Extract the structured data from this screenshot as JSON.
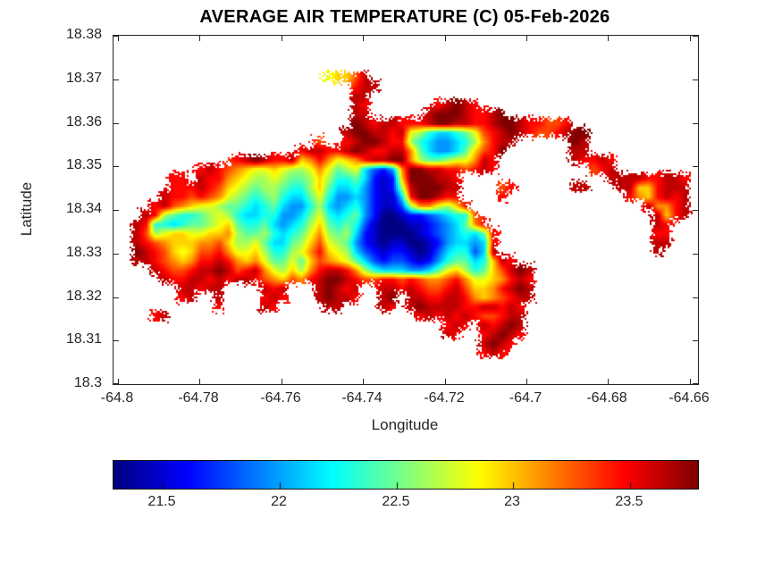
{
  "chart_data": {
    "type": "heatmap",
    "title": "AVERAGE AIR TEMPERATURE (C) 05-Feb-2026",
    "xlabel": "Longitude",
    "ylabel": "Latitude",
    "xlim": [
      -64.8011,
      -64.658
    ],
    "ylim": [
      18.3,
      18.38
    ],
    "xticks": [
      -64.8,
      -64.78,
      -64.76,
      -64.74,
      -64.72,
      -64.7,
      -64.68,
      -64.66
    ],
    "xtick_labels": [
      "-64.8",
      "-64.78",
      "-64.76",
      "-64.74",
      "-64.72",
      "-64.7",
      "-64.68",
      "-64.66"
    ],
    "yticks": [
      18.3,
      18.31,
      18.32,
      18.33,
      18.34,
      18.35,
      18.36,
      18.37,
      18.38
    ],
    "ytick_labels": [
      "18.3",
      "18.31",
      "18.32",
      "18.33",
      "18.34",
      "18.35",
      "18.36",
      "18.37",
      "18.38"
    ],
    "grid_on": false,
    "colormap": "jet",
    "colorbar": {
      "orientation": "horizontal",
      "vmin": 21.29,
      "vmax": 23.79,
      "ticks": [
        21.5,
        22,
        22.5,
        23,
        23.5
      ],
      "tick_labels": [
        "21.5",
        "22",
        "22.5",
        "23",
        "23.5"
      ]
    },
    "grid": {
      "cols": 64,
      "rows": 38,
      "value_min": 21.3,
      "value_max": 23.8,
      "sea_char": ".",
      "levels": "0123456789abcdef",
      "rows_data": [
        "",
        "",
        "",
        "",
        ".......................9aace",
        "..........................dee",
        "..........................ee",
        "..........................ed.......defed",
        "..........................ee......efffeddef",
        "..........................fedeedddeffeeddeffeddccd",
        ".........................effeede98655679cdefedccdeff",
        "......................c..deffedd86544568bdee......fe",
        "....................deeddefeddeeb754457acdf.......ee",
        ".............defeddeabdb9abdeeffb877899bed........edded",
        ".........dedcba99a9889b97895324bffeeddcded..........cde",
        "......dd.eddba98898778a86675212afffeed................eeeeddeed",
        "......dddedca987887668a755642128efffee....cd......ee...eeaadeee",
        ".....eddcdcb98767865579644542115dffedd....d.............dbadede",
        "....decba998776567544685456421138bb98ad...................ebbde",
        "...ed8766789865566445796567420012234566c...................eade",
        "..ed66567789a766754568a7676310001123457bd..................ed",
        "..ec89aa99aab877865679b878521000012345657d.................dd",
        "..edcbaaabbca88975578ac987421011001245545d.................ee",
        "..fedca9accdb99a86689bda98532122101356635e.................e",
        "..eedcbabddedbab97797acba9753233212467756aed",
        "....edccdeefecdeb98a8bdeedb8655544579a867acefe",
        ".....eddeededeedcbacbdeffedccddcdcbbcdb99abded",
        ".......eedee....ede...efede..eededccdecaabdefe",
        ".......de..e....ded...efeed..ef.eeddeedbabcdee",
        "...........d....ed.....ee....ed.efeeeeddeeded",
        "....de...........................dedededccdee",
        "....................................ded.edefe",
        "....................................ed..defed",
        "........................................efed",
        "........................................ded",
        "",
        "",
        ""
      ]
    }
  }
}
